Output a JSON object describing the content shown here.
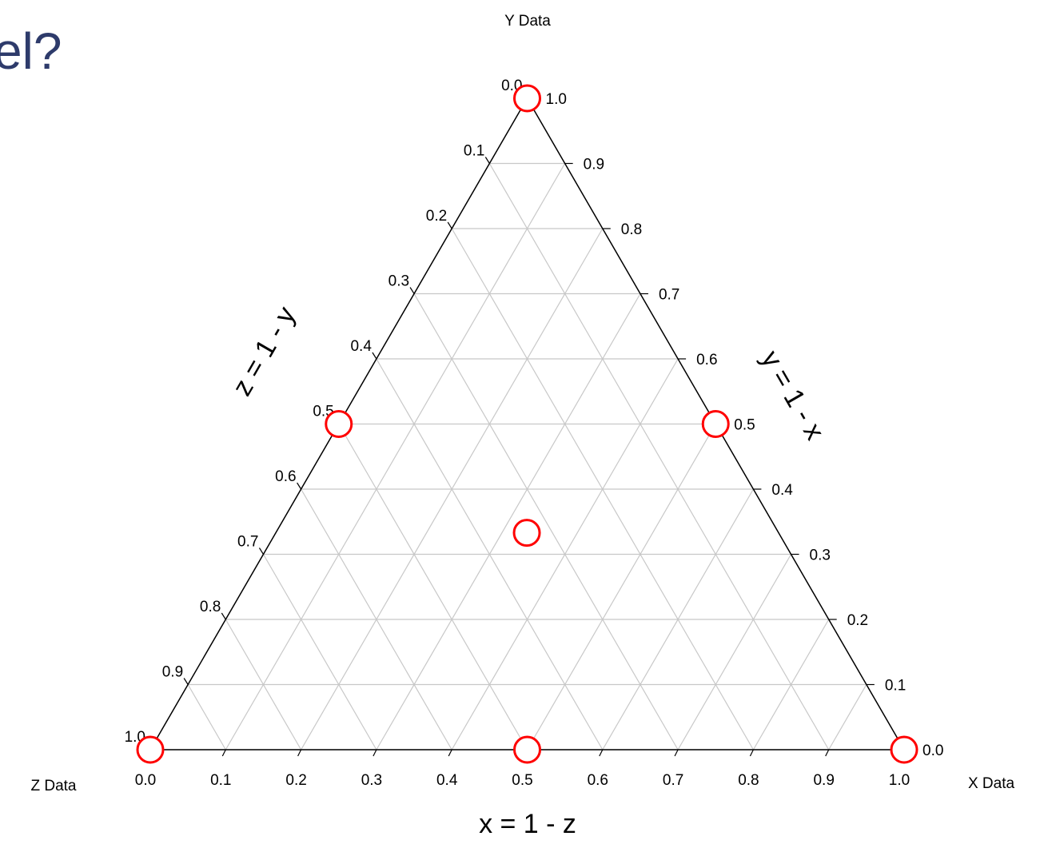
{
  "chart_data": {
    "type": "ternary",
    "title": "el?",
    "x_axis_title": "X Data",
    "y_axis_title": "Y Data",
    "z_axis_title": "Z Data",
    "annotations": [
      "x = 1 - z",
      "z = 1 - y",
      "y = 1 - x"
    ],
    "series": [
      {
        "name": null,
        "color": "#ff0000",
        "x": [
          0,
          0,
          1,
          0,
          0.5,
          0.5,
          0.333
        ],
        "y": [
          1,
          0,
          0,
          0.5,
          0.5,
          0,
          0.333
        ],
        "z": [
          0,
          1,
          0,
          0.5,
          0,
          0.5,
          0.333
        ]
      }
    ],
    "xticks": [
      {
        "value": 0,
        "label": "0.0"
      },
      {
        "value": 0.1,
        "label": "0.1"
      },
      {
        "value": 0.2,
        "label": "0.2"
      },
      {
        "value": 0.3,
        "label": "0.3"
      },
      {
        "value": 0.4,
        "label": "0.4"
      },
      {
        "value": 0.5,
        "label": "0.5"
      },
      {
        "value": 0.6,
        "label": "0.6"
      },
      {
        "value": 0.7,
        "label": "0.7"
      },
      {
        "value": 0.8,
        "label": "0.8"
      },
      {
        "value": 0.9,
        "label": "0.9"
      },
      {
        "value": 1,
        "label": "1.0"
      }
    ],
    "yticks": [
      {
        "value": 0,
        "label": "0.0"
      },
      {
        "value": 0.1,
        "label": "0.1"
      },
      {
        "value": 0.2,
        "label": "0.2"
      },
      {
        "value": 0.3,
        "label": "0.3"
      },
      {
        "value": 0.4,
        "label": "0.4"
      },
      {
        "value": 0.5,
        "label": "0.5"
      },
      {
        "value": 0.6,
        "label": "0.6"
      },
      {
        "value": 0.7,
        "label": "0.7"
      },
      {
        "value": 0.8,
        "label": "0.8"
      },
      {
        "value": 0.9,
        "label": "0.9"
      },
      {
        "value": 1,
        "label": "1.0"
      }
    ],
    "zticks": [
      {
        "value": 0,
        "label": "0.0"
      },
      {
        "value": 0.1,
        "label": "0.1"
      },
      {
        "value": 0.2,
        "label": "0.2"
      },
      {
        "value": 0.3,
        "label": "0.3"
      },
      {
        "value": 0.4,
        "label": "0.4"
      },
      {
        "value": 0.5,
        "label": "0.5"
      },
      {
        "value": 0.6,
        "label": "0.6"
      },
      {
        "value": 0.7,
        "label": "0.7"
      },
      {
        "value": 0.8,
        "label": "0.8"
      },
      {
        "value": 0.9,
        "label": "0.9"
      },
      {
        "value": 1,
        "label": "1.0"
      }
    ],
    "grid": true
  }
}
